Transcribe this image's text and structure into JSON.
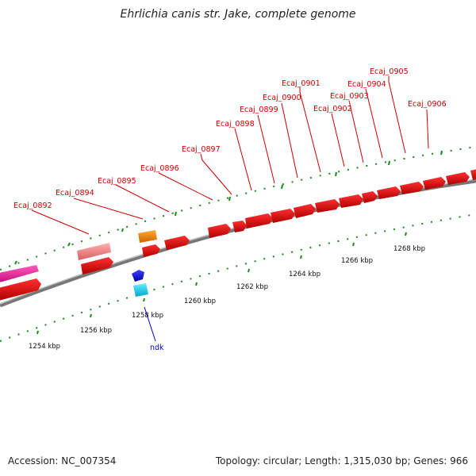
{
  "title": "Ehrlichia canis str. Jake, complete genome",
  "footer": {
    "accession": "Accession: NC_007354",
    "summary": "Topology: circular; Length: 1,315,030 bp; Genes: 966"
  },
  "ticks": [
    "1254 kbp",
    "1256 kbp",
    "1258 kbp",
    "1260 kbp",
    "1262 kbp",
    "1264 kbp",
    "1266 kbp",
    "1268 kbp"
  ],
  "genes": [
    {
      "label": "Ecaj_0892",
      "color": "#cc0000"
    },
    {
      "label": "Ecaj_0894",
      "color": "#cc0000"
    },
    {
      "label": "Ecaj_0895",
      "color": "#cc0000"
    },
    {
      "label": "Ecaj_0896",
      "color": "#cc0000"
    },
    {
      "label": "Ecaj_0897",
      "color": "#cc0000"
    },
    {
      "label": "Ecaj_0898",
      "color": "#cc0000"
    },
    {
      "label": "Ecaj_0899",
      "color": "#cc0000"
    },
    {
      "label": "Ecaj_0900",
      "color": "#cc0000"
    },
    {
      "label": "Ecaj_0901",
      "color": "#cc0000"
    },
    {
      "label": "Ecaj_0902",
      "color": "#cc0000"
    },
    {
      "label": "Ecaj_0903",
      "color": "#cc0000"
    },
    {
      "label": "Ecaj_0904",
      "color": "#cc0000"
    },
    {
      "label": "Ecaj_0905",
      "color": "#cc0000"
    },
    {
      "label": "Ecaj_0906",
      "color": "#cc0000"
    },
    {
      "label": "ndk",
      "color": "#0000cc"
    }
  ]
}
